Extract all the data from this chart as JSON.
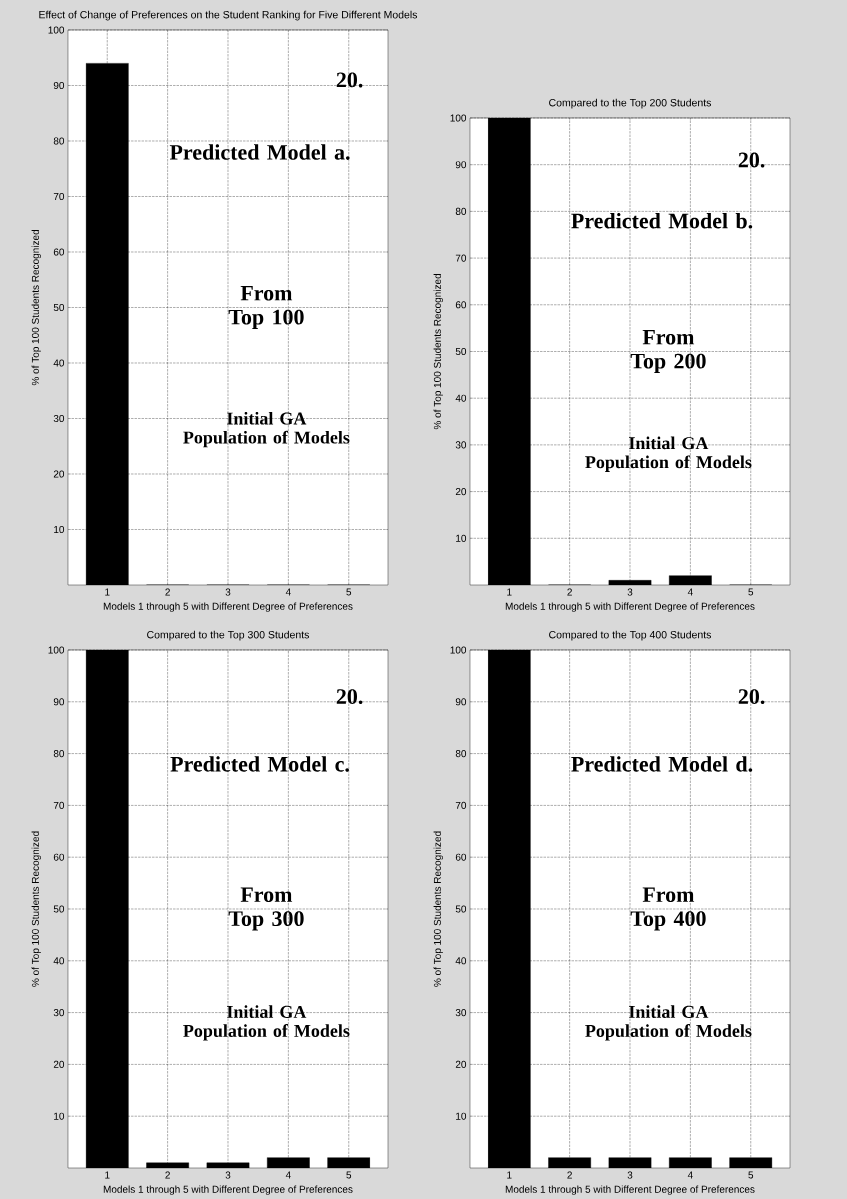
{
  "chart_data": [
    {
      "type": "bar",
      "title": "Effect of Change of Preferences on the Student Ranking for Five Different Models",
      "xlabel": "Models 1 through 5 with Different Degree of Preferences",
      "ylabel": "% of Top 100 Students Recognized",
      "categories": [
        "1",
        "2",
        "3",
        "4",
        "5"
      ],
      "values": [
        94,
        0,
        0,
        0,
        0
      ],
      "color": "#000000",
      "ylim": [
        0,
        100
      ],
      "yticks": [
        10,
        20,
        30,
        40,
        50,
        60,
        70,
        80,
        90,
        100
      ],
      "grid": true,
      "annotations": [
        "Predicted Model a.",
        "From Top 100",
        "Initial GA Population of Models",
        "20."
      ]
    },
    {
      "type": "bar",
      "title": "Compared to the Top 200 Students",
      "xlabel": "Models 1 through 5 with Different Degree of Preferences",
      "ylabel": "% of Top 100 Students Recognized",
      "categories": [
        "1",
        "2",
        "3",
        "4",
        "5"
      ],
      "values": [
        100,
        0,
        1,
        2,
        0
      ],
      "color": "#000000",
      "ylim": [
        0,
        100
      ],
      "yticks": [
        10,
        20,
        30,
        40,
        50,
        60,
        70,
        80,
        90,
        100
      ],
      "grid": true,
      "annotations": [
        "Predicted Model b.",
        "From Top 200",
        "Initial GA Population of Models",
        "20."
      ]
    },
    {
      "type": "bar",
      "title": "Compared to the Top 300 Students",
      "xlabel": "Models 1 through 5 with Different Degree of Preferences",
      "ylabel": "% of Top 100 Students Recognized",
      "categories": [
        "1",
        "2",
        "3",
        "4",
        "5"
      ],
      "values": [
        100,
        1,
        1,
        2,
        2
      ],
      "color": "#000000",
      "ylim": [
        0,
        100
      ],
      "yticks": [
        10,
        20,
        30,
        40,
        50,
        60,
        70,
        80,
        90,
        100
      ],
      "grid": true,
      "annotations": [
        "Predicted Model c.",
        "From Top 300",
        "Initial GA Population of Models",
        "20."
      ]
    },
    {
      "type": "bar",
      "title": "Compared to the Top 400 Students",
      "xlabel": "Models 1 through 5 with Different Degree of Preferences",
      "ylabel": "% of Top 100 Students Recognized",
      "categories": [
        "1",
        "2",
        "3",
        "4",
        "5"
      ],
      "values": [
        100,
        2,
        2,
        2,
        2
      ],
      "color": "#000000",
      "ylim": [
        0,
        100
      ],
      "yticks": [
        10,
        20,
        30,
        40,
        50,
        60,
        70,
        80,
        90,
        100
      ],
      "grid": true,
      "annotations": [
        "Predicted Model d.",
        "From Top 400",
        "Initial GA Population of Models",
        "20."
      ]
    }
  ]
}
